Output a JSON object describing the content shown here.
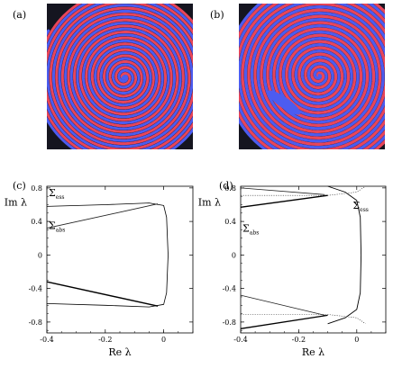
{
  "panels": [
    {
      "label": "(a)"
    },
    {
      "label": "(b)"
    },
    {
      "label": "(c)"
    },
    {
      "label": "(d)"
    }
  ],
  "spirals": {
    "colors": {
      "red": "#e8455a",
      "blue": "#4c5cf0",
      "black": "#151520"
    },
    "arms": 2
  },
  "chart_data": [
    {
      "type": "line",
      "panel": "(c)",
      "xlabel": "Re λ",
      "ylabel": "Im λ",
      "xlim": [
        -0.4,
        0.1
      ],
      "ylim": [
        -0.93,
        0.82
      ],
      "xticks": [
        -0.4,
        -0.2,
        0
      ],
      "xtick_labels": [
        "-0.4",
        "-0.2",
        "0"
      ],
      "yticks": [
        0.8,
        0.4,
        0,
        -0.4,
        -0.8
      ],
      "ytick_labels": [
        "0.8",
        "0.4",
        "0",
        "-0.4",
        "-0.8"
      ],
      "annotations": [
        {
          "base": "Σ",
          "sub": "ess",
          "x": -0.4,
          "y": 0.7
        },
        {
          "base": "Σ",
          "sub": "abs",
          "x": -0.4,
          "y": 0.31
        }
      ],
      "series": [
        {
          "role": "essential-curve",
          "stroke": "#000000",
          "width": 0.8,
          "x": [
            -0.4,
            -0.2,
            -0.05,
            0.0,
            0.01,
            0.015,
            0.01,
            0.0,
            -0.05,
            -0.2,
            -0.4
          ],
          "y": [
            0.58,
            0.6,
            0.62,
            0.59,
            0.45,
            0.0,
            -0.45,
            -0.59,
            -0.62,
            -0.6,
            -0.58
          ]
        },
        {
          "role": "absolute-upper",
          "stroke": "#222222",
          "width": 0.9,
          "x": [
            -0.4,
            -0.02
          ],
          "y": [
            0.32,
            0.61
          ]
        },
        {
          "role": "absolute-lower",
          "stroke": "#000000",
          "width": 1.4,
          "x": [
            -0.4,
            -0.02
          ],
          "y": [
            -0.32,
            -0.61
          ]
        }
      ]
    },
    {
      "type": "line",
      "panel": "(d)",
      "xlabel": "Re λ",
      "ylabel": "Im λ",
      "xlim": [
        -0.4,
        0.1
      ],
      "ylim": [
        -0.93,
        0.82
      ],
      "xticks": [
        -0.4,
        -0.2,
        0
      ],
      "xtick_labels": [
        "-0.4",
        "-0.2",
        "0"
      ],
      "yticks": [
        0.8,
        0.4,
        0,
        -0.4,
        -0.8
      ],
      "ytick_labels": [
        "0.8",
        "0.4",
        "0",
        "-0.4",
        "-0.8"
      ],
      "annotations": [
        {
          "base": "Σ",
          "sub": "ess",
          "x": -0.02,
          "y": 0.55
        },
        {
          "base": "Σ",
          "sub": "abs",
          "x": -0.4,
          "y": 0.28
        }
      ],
      "series": [
        {
          "role": "essential-curve",
          "stroke": "#000000",
          "width": 0.9,
          "x": [
            -0.1,
            -0.04,
            0.0,
            0.012,
            0.015,
            0.012,
            0.0,
            -0.04,
            -0.1
          ],
          "y": [
            0.82,
            0.75,
            0.65,
            0.45,
            0.0,
            -0.45,
            -0.65,
            -0.75,
            -0.82
          ]
        },
        {
          "role": "upper-dotted",
          "stroke": "#333333",
          "width": 0.6,
          "dash": "1.2,1.4",
          "x": [
            -0.4,
            -0.1,
            0.0,
            0.03
          ],
          "y": [
            0.71,
            0.71,
            0.75,
            0.82
          ]
        },
        {
          "role": "lower-dotted",
          "stroke": "#333333",
          "width": 0.6,
          "dash": "1.2,1.4",
          "x": [
            -0.4,
            -0.1,
            0.0,
            0.03
          ],
          "y": [
            -0.71,
            -0.71,
            -0.75,
            -0.82
          ]
        },
        {
          "role": "branch-1",
          "stroke": "#222222",
          "width": 0.8,
          "x": [
            -0.4,
            -0.11
          ],
          "y": [
            0.8,
            0.72
          ]
        },
        {
          "role": "branch-2",
          "stroke": "#000000",
          "width": 1.3,
          "x": [
            -0.4,
            -0.1
          ],
          "y": [
            0.57,
            0.71
          ]
        },
        {
          "role": "branch-3",
          "stroke": "#222222",
          "width": 0.8,
          "x": [
            -0.4,
            -0.11
          ],
          "y": [
            -0.48,
            -0.72
          ]
        },
        {
          "role": "branch-4",
          "stroke": "#000000",
          "width": 1.3,
          "x": [
            -0.4,
            -0.1
          ],
          "y": [
            -0.88,
            -0.72
          ]
        }
      ]
    }
  ]
}
